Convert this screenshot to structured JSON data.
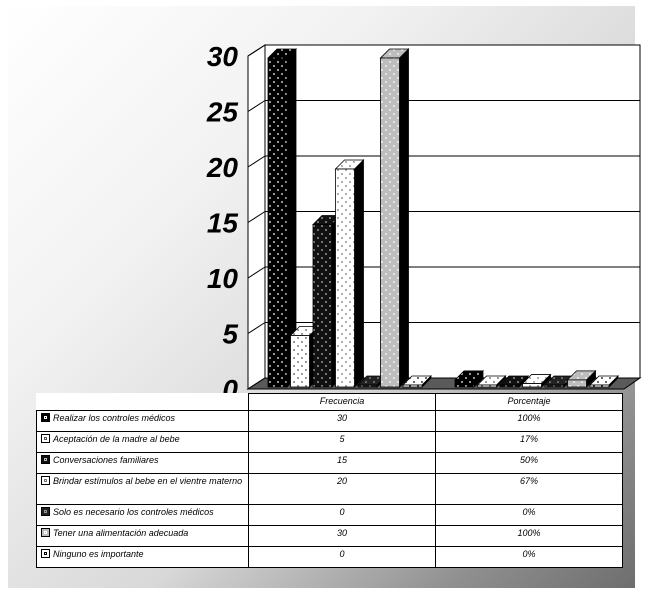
{
  "chart_data": {
    "type": "bar",
    "categories": [
      "Frecuencia",
      "Porcentaje"
    ],
    "ylim": [
      0,
      30
    ],
    "yticks": [
      "0",
      "5",
      "10",
      "15",
      "20",
      "25",
      "30"
    ],
    "series": [
      {
        "name": "Realizar los controles médicos",
        "values": [
          30,
          1.0
        ],
        "table": [
          "30",
          "100%"
        ],
        "fill": "#000000",
        "dot": "#ffffff"
      },
      {
        "name": "Aceptación de la madre al bebe",
        "values": [
          5,
          0.17
        ],
        "table": [
          "5",
          "17%"
        ],
        "fill": "#ffffff",
        "dot": "#555555"
      },
      {
        "name": "Conversaciones familiares",
        "values": [
          15,
          0.5
        ],
        "table": [
          "15",
          "50%"
        ],
        "fill": "#111111",
        "dot": "#bbbbbb"
      },
      {
        "name": "Brindar estímulos al bebe en el vientre materno",
        "values": [
          20,
          0.67
        ],
        "table": [
          "20",
          "67%"
        ],
        "fill": "#ffffff",
        "dot": "#777777"
      },
      {
        "name": "Solo es necesario los controles médicos",
        "values": [
          0,
          0
        ],
        "table": [
          "0",
          "0%"
        ],
        "fill": "#222222",
        "dot": "#999999"
      },
      {
        "name": "Tener una alimentación adecuada",
        "values": [
          30,
          1.0
        ],
        "table": [
          "30",
          "100%"
        ],
        "fill": "#bdbdbd",
        "dot": "#ffffff"
      },
      {
        "name": "Ninguno es importante",
        "values": [
          0,
          0
        ],
        "table": [
          "0",
          "0%"
        ],
        "fill": "#ffffff",
        "dot": "#000000"
      }
    ],
    "grid": true,
    "legend": "table-below"
  }
}
